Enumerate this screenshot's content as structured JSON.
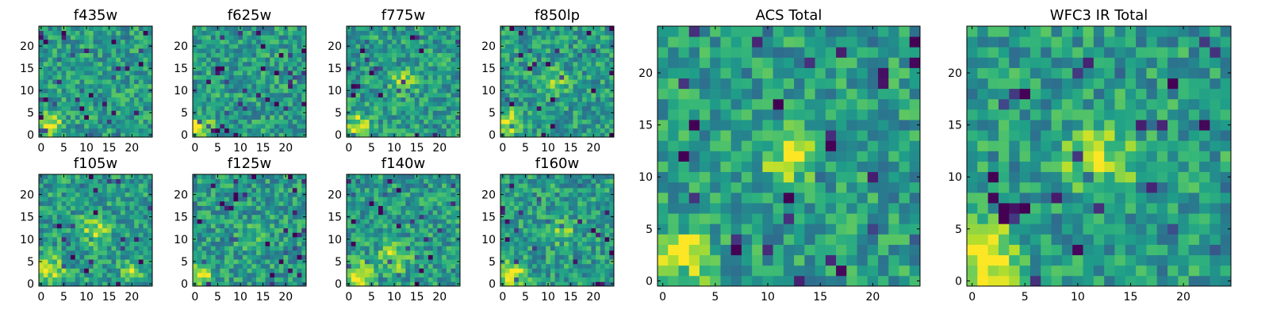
{
  "chart_data": [
    {
      "type": "heatmap",
      "title": "f435w",
      "xlim": [
        -0.5,
        24.5
      ],
      "ylim": [
        -0.5,
        24.5
      ],
      "xticks": [
        "0",
        "5",
        "10",
        "15",
        "20"
      ],
      "yticks": [
        "0",
        "5",
        "10",
        "15",
        "20"
      ],
      "grid_size": [
        25,
        25
      ],
      "colormap": "viridis",
      "seed": 11,
      "bright_regions": [
        {
          "col": 2,
          "row": 2,
          "radius": 4,
          "strength": 0.5
        }
      ]
    },
    {
      "type": "heatmap",
      "title": "f625w",
      "xlim": [
        -0.5,
        24.5
      ],
      "ylim": [
        -0.5,
        24.5
      ],
      "xticks": [
        "0",
        "5",
        "10",
        "15",
        "20"
      ],
      "yticks": [
        "0",
        "5",
        "10",
        "15",
        "20"
      ],
      "grid_size": [
        25,
        25
      ],
      "colormap": "viridis",
      "seed": 23,
      "bright_regions": [
        {
          "col": 1,
          "row": 2,
          "radius": 4,
          "strength": 0.5
        }
      ]
    },
    {
      "type": "heatmap",
      "title": "f775w",
      "xlim": [
        -0.5,
        24.5
      ],
      "ylim": [
        -0.5,
        24.5
      ],
      "xticks": [
        "0",
        "5",
        "10",
        "15",
        "20"
      ],
      "yticks": [
        "0",
        "5",
        "10",
        "15",
        "20"
      ],
      "grid_size": [
        25,
        25
      ],
      "colormap": "viridis",
      "seed": 37,
      "bright_regions": [
        {
          "col": 2,
          "row": 2,
          "radius": 4,
          "strength": 0.5
        },
        {
          "col": 12,
          "row": 12,
          "radius": 4,
          "strength": 0.35
        }
      ]
    },
    {
      "type": "heatmap",
      "title": "f850lp",
      "xlim": [
        -0.5,
        24.5
      ],
      "ylim": [
        -0.5,
        24.5
      ],
      "xticks": [
        "0",
        "5",
        "10",
        "15",
        "20"
      ],
      "yticks": [
        "0",
        "5",
        "10",
        "15",
        "20"
      ],
      "grid_size": [
        25,
        25
      ],
      "colormap": "viridis",
      "seed": 41,
      "bright_regions": [
        {
          "col": 2,
          "row": 3,
          "radius": 4,
          "strength": 0.45
        },
        {
          "col": 12,
          "row": 12,
          "radius": 4,
          "strength": 0.3
        }
      ]
    },
    {
      "type": "heatmap",
      "title": "f105w",
      "xlim": [
        -0.5,
        24.5
      ],
      "ylim": [
        -0.5,
        24.5
      ],
      "xticks": [
        "0",
        "5",
        "10",
        "15",
        "20"
      ],
      "yticks": [
        "0",
        "5",
        "10",
        "15",
        "20"
      ],
      "grid_size": [
        25,
        25
      ],
      "colormap": "viridis",
      "seed": 53,
      "bright_regions": [
        {
          "col": 2,
          "row": 3,
          "radius": 5,
          "strength": 0.4
        },
        {
          "col": 12,
          "row": 12,
          "radius": 5,
          "strength": 0.35
        },
        {
          "col": 20,
          "row": 3,
          "radius": 4,
          "strength": 0.3
        }
      ]
    },
    {
      "type": "heatmap",
      "title": "f125w",
      "xlim": [
        -0.5,
        24.5
      ],
      "ylim": [
        -0.5,
        24.5
      ],
      "xticks": [
        "0",
        "5",
        "10",
        "15",
        "20"
      ],
      "yticks": [
        "0",
        "5",
        "10",
        "15",
        "20"
      ],
      "grid_size": [
        25,
        25
      ],
      "colormap": "viridis",
      "seed": 67,
      "bright_regions": [
        {
          "col": 1,
          "row": 2,
          "radius": 4,
          "strength": 0.5
        },
        {
          "col": 12,
          "row": 10,
          "radius": 4,
          "strength": 0.2
        }
      ]
    },
    {
      "type": "heatmap",
      "title": "f140w",
      "xlim": [
        -0.5,
        24.5
      ],
      "ylim": [
        -0.5,
        24.5
      ],
      "xticks": [
        "0",
        "5",
        "10",
        "15",
        "20"
      ],
      "yticks": [
        "0",
        "5",
        "10",
        "15",
        "20"
      ],
      "grid_size": [
        25,
        25
      ],
      "colormap": "viridis",
      "seed": 71,
      "bright_regions": [
        {
          "col": 2,
          "row": 2,
          "radius": 5,
          "strength": 0.45
        },
        {
          "col": 10,
          "row": 6,
          "radius": 5,
          "strength": 0.35
        }
      ]
    },
    {
      "type": "heatmap",
      "title": "f160w",
      "xlim": [
        -0.5,
        24.5
      ],
      "ylim": [
        -0.5,
        24.5
      ],
      "xticks": [
        "0",
        "5",
        "10",
        "15",
        "20"
      ],
      "yticks": [
        "0",
        "5",
        "10",
        "15",
        "20"
      ],
      "grid_size": [
        25,
        25
      ],
      "colormap": "viridis",
      "seed": 83,
      "bright_regions": [
        {
          "col": 2,
          "row": 2,
          "radius": 5,
          "strength": 0.5
        },
        {
          "col": 13,
          "row": 12,
          "radius": 4,
          "strength": 0.3
        }
      ]
    },
    {
      "type": "heatmap",
      "title": "ACS Total",
      "xlim": [
        -0.5,
        24.5
      ],
      "ylim": [
        -0.5,
        24.5
      ],
      "xticks": [
        "0",
        "5",
        "10",
        "15",
        "20"
      ],
      "yticks": [
        "0",
        "5",
        "10",
        "15",
        "20"
      ],
      "grid_size": [
        25,
        25
      ],
      "colormap": "viridis",
      "seed": 97,
      "bright_regions": [
        {
          "col": 2,
          "row": 2,
          "radius": 4,
          "strength": 0.55
        },
        {
          "col": 12,
          "row": 12,
          "radius": 4,
          "strength": 0.4
        }
      ]
    },
    {
      "type": "heatmap",
      "title": "WFC3 IR Total",
      "xlim": [
        -0.5,
        24.5
      ],
      "ylim": [
        -0.5,
        24.5
      ],
      "xticks": [
        "0",
        "5",
        "10",
        "15",
        "20"
      ],
      "yticks": [
        "0",
        "5",
        "10",
        "15",
        "20"
      ],
      "grid_size": [
        25,
        25
      ],
      "colormap": "viridis",
      "seed": 101,
      "bright_regions": [
        {
          "col": 1,
          "row": 2,
          "radius": 5,
          "strength": 0.6
        },
        {
          "col": 12,
          "row": 12,
          "radius": 5,
          "strength": 0.4
        }
      ]
    }
  ]
}
